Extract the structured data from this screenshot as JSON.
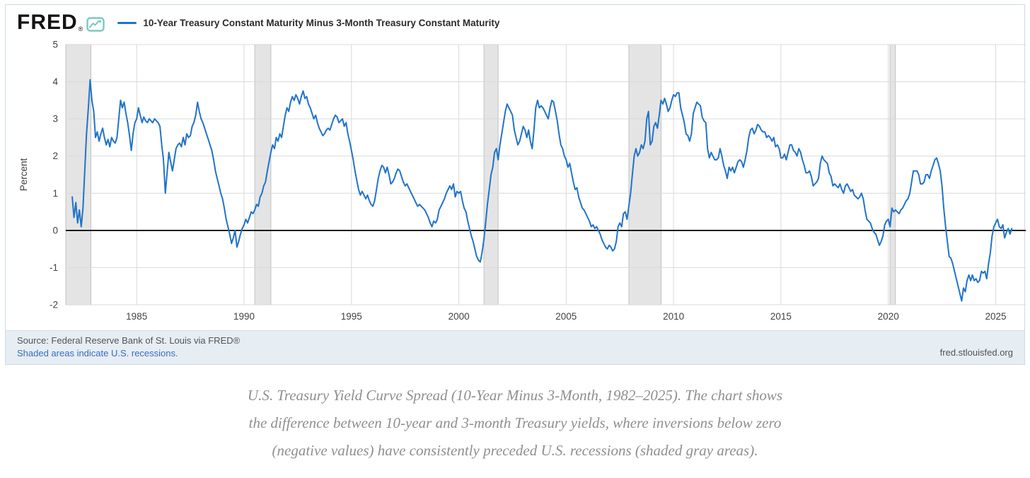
{
  "header": {
    "logo_text": "FRED",
    "logo_registered": "®",
    "legend_label": "10-Year Treasury Constant Maturity Minus 3-Month Treasury Constant Maturity"
  },
  "footer": {
    "source_line": "Source: Federal Reserve Bank of St. Louis via FRED®",
    "recessions_note": "Shaded areas indicate U.S. recessions.",
    "site": "fred.stlouisfed.org"
  },
  "caption_lines": [
    "U.S. Treasury Yield Curve Spread (10-Year Minus 3-Month, 1982–2025). The chart shows",
    "the difference between 10-year and 3-month Treasury yields, where inversions below zero",
    "(negative values) have consistently preceded U.S. recessions (shaded gray areas)."
  ],
  "chart_data": {
    "type": "line",
    "title": "10-Year Treasury Constant Maturity Minus 3-Month Treasury Constant Maturity",
    "xlabel": "",
    "ylabel": "Percent",
    "ylim": [
      -2,
      5
    ],
    "xlim": [
      1981.7,
      2026.4
    ],
    "y_ticks": [
      5,
      4,
      3,
      2,
      1,
      0,
      -1,
      -2
    ],
    "x_ticks": [
      1985,
      1990,
      1995,
      2000,
      2005,
      2010,
      2015,
      2020,
      2025
    ],
    "grid": true,
    "zero_line": true,
    "legend_position": "top-left",
    "line_color": "#2273c8",
    "recession_color": "#e4e4e4",
    "recession_band_edge_color": "#c2c2c2",
    "recession_bands": [
      [
        1981.7,
        1982.87
      ],
      [
        1990.5,
        1991.25
      ],
      [
        2001.17,
        2001.83
      ],
      [
        2007.92,
        2009.42
      ],
      [
        2020.08,
        2020.33
      ]
    ],
    "series": {
      "name": "10-Year Treasury Constant Maturity Minus 3-Month Treasury Constant Maturity",
      "units": "Percent",
      "start_year": 1982.0,
      "step_years": 0.0833333,
      "values": [
        0.9,
        0.35,
        0.75,
        0.2,
        0.55,
        0.1,
        0.6,
        1.6,
        2.6,
        3.3,
        4.05,
        3.5,
        3.2,
        2.5,
        2.65,
        2.4,
        2.6,
        2.75,
        2.5,
        2.3,
        2.45,
        2.25,
        2.5,
        2.4,
        2.35,
        2.5,
        3.0,
        3.5,
        3.3,
        3.45,
        3.15,
        2.9,
        2.55,
        2.15,
        2.6,
        2.9,
        3.0,
        3.3,
        3.1,
        2.9,
        3.05,
        2.95,
        2.9,
        3.0,
        2.95,
        2.9,
        3.0,
        2.95,
        2.9,
        2.8,
        2.3,
        1.9,
        1.0,
        1.55,
        2.1,
        1.85,
        1.6,
        1.9,
        2.2,
        2.3,
        2.35,
        2.25,
        2.5,
        2.3,
        2.6,
        2.5,
        2.55,
        2.8,
        2.9,
        3.1,
        3.45,
        3.2,
        3.0,
        2.9,
        2.75,
        2.6,
        2.45,
        2.3,
        2.15,
        1.9,
        1.6,
        1.4,
        1.2,
        1.0,
        0.85,
        0.6,
        0.3,
        0.1,
        -0.1,
        -0.35,
        -0.2,
        0.0,
        -0.45,
        -0.3,
        -0.1,
        0.05,
        0.15,
        0.3,
        0.2,
        0.35,
        0.5,
        0.45,
        0.55,
        0.7,
        0.65,
        0.9,
        1.0,
        1.2,
        1.3,
        1.6,
        1.85,
        2.1,
        2.3,
        2.2,
        2.5,
        2.4,
        2.6,
        2.5,
        2.8,
        3.1,
        3.3,
        3.2,
        3.45,
        3.6,
        3.5,
        3.65,
        3.55,
        3.4,
        3.6,
        3.75,
        3.55,
        3.6,
        3.4,
        3.3,
        3.15,
        3.0,
        3.1,
        2.9,
        2.75,
        2.65,
        2.55,
        2.6,
        2.7,
        2.75,
        2.7,
        2.85,
        3.0,
        3.1,
        3.05,
        2.9,
        2.95,
        3.0,
        2.8,
        2.9,
        2.6,
        2.4,
        2.15,
        1.9,
        1.6,
        1.35,
        1.1,
        0.95,
        1.05,
        0.95,
        0.85,
        0.95,
        0.8,
        0.7,
        0.65,
        0.8,
        1.1,
        1.4,
        1.6,
        1.75,
        1.7,
        1.55,
        1.7,
        1.5,
        1.25,
        1.3,
        1.4,
        1.55,
        1.65,
        1.6,
        1.45,
        1.3,
        1.2,
        1.25,
        1.15,
        1.05,
        0.95,
        0.85,
        0.75,
        0.65,
        0.7,
        0.65,
        0.6,
        0.55,
        0.45,
        0.35,
        0.2,
        0.1,
        0.25,
        0.2,
        0.3,
        0.55,
        0.65,
        0.75,
        0.85,
        1.0,
        1.1,
        1.2,
        1.1,
        1.25,
        0.9,
        1.05,
        1.0,
        1.05,
        0.8,
        0.6,
        0.5,
        0.25,
        0.05,
        -0.15,
        -0.3,
        -0.5,
        -0.7,
        -0.8,
        -0.85,
        -0.6,
        -0.25,
        0.2,
        0.7,
        1.1,
        1.5,
        1.7,
        2.1,
        2.2,
        1.9,
        2.3,
        2.6,
        2.9,
        3.2,
        3.4,
        3.3,
        3.2,
        3.1,
        2.7,
        2.5,
        2.3,
        2.4,
        2.6,
        2.8,
        2.7,
        2.5,
        2.7,
        2.4,
        2.2,
        2.7,
        3.3,
        3.5,
        3.3,
        3.35,
        3.3,
        3.2,
        3.1,
        3.0,
        3.3,
        3.5,
        3.45,
        3.2,
        2.95,
        2.6,
        2.3,
        2.2,
        2.0,
        1.9,
        1.7,
        1.8,
        1.55,
        1.3,
        1.1,
        1.15,
        0.9,
        0.75,
        0.6,
        0.55,
        0.45,
        0.35,
        0.25,
        0.1,
        0.15,
        0.05,
        0.1,
        0.0,
        -0.1,
        -0.25,
        -0.35,
        -0.45,
        -0.5,
        -0.4,
        -0.45,
        -0.55,
        -0.5,
        -0.3,
        0.1,
        0.2,
        0.1,
        0.45,
        0.5,
        0.3,
        0.65,
        1.0,
        1.5,
        2.0,
        2.2,
        2.0,
        2.1,
        2.3,
        2.2,
        2.4,
        3.0,
        3.2,
        2.3,
        2.4,
        2.8,
        2.9,
        2.75,
        3.1,
        3.5,
        3.4,
        3.55,
        3.4,
        3.2,
        3.3,
        3.5,
        3.65,
        3.6,
        3.7,
        3.7,
        3.3,
        3.1,
        2.9,
        2.6,
        2.55,
        2.4,
        2.6,
        3.15,
        3.3,
        3.45,
        3.4,
        3.35,
        3.05,
        2.95,
        2.9,
        2.2,
        1.95,
        2.1,
        2.0,
        1.9,
        1.9,
        1.95,
        2.2,
        2.0,
        1.75,
        1.6,
        1.4,
        1.7,
        1.6,
        1.7,
        1.55,
        1.7,
        1.85,
        1.9,
        1.85,
        1.7,
        1.9,
        2.15,
        2.5,
        2.7,
        2.75,
        2.6,
        2.7,
        2.85,
        2.8,
        2.7,
        2.65,
        2.65,
        2.5,
        2.55,
        2.5,
        2.4,
        2.5,
        2.25,
        2.3,
        2.2,
        1.95,
        1.95,
        2.05,
        1.9,
        2.1,
        2.3,
        2.3,
        2.15,
        2.1,
        2.0,
        2.2,
        2.1,
        1.9,
        1.75,
        1.55,
        1.55,
        1.6,
        1.45,
        1.2,
        1.25,
        1.3,
        1.4,
        1.8,
        2.0,
        1.9,
        1.85,
        1.8,
        1.55,
        1.45,
        1.2,
        1.25,
        1.2,
        1.15,
        1.25,
        1.1,
        1.0,
        1.2,
        1.25,
        1.15,
        1.05,
        1.1,
        0.95,
        0.9,
        0.85,
        0.9,
        1.0,
        0.85,
        0.55,
        0.3,
        0.25,
        0.2,
        0.05,
        -0.05,
        -0.1,
        -0.25,
        -0.4,
        -0.3,
        -0.15,
        0.15,
        0.25,
        0.3,
        0.1,
        0.6,
        0.5,
        0.55,
        0.5,
        0.45,
        0.55,
        0.6,
        0.7,
        0.8,
        0.85,
        1.0,
        1.3,
        1.6,
        1.6,
        1.6,
        1.5,
        1.25,
        1.25,
        1.3,
        1.5,
        1.5,
        1.4,
        1.6,
        1.75,
        1.9,
        1.95,
        1.8,
        1.6,
        1.2,
        0.6,
        0.1,
        -0.3,
        -0.7,
        -0.75,
        -0.9,
        -1.1,
        -1.3,
        -1.5,
        -1.7,
        -1.9,
        -1.55,
        -1.65,
        -1.35,
        -1.2,
        -1.35,
        -1.2,
        -1.35,
        -1.3,
        -1.4,
        -1.35,
        -1.1,
        -1.15,
        -1.1,
        -1.3,
        -0.9,
        -0.6,
        -0.15,
        0.1,
        0.2,
        0.3,
        0.1,
        0.05,
        0.15,
        -0.2,
        -0.05,
        0.05,
        -0.1,
        0.05
      ]
    }
  }
}
